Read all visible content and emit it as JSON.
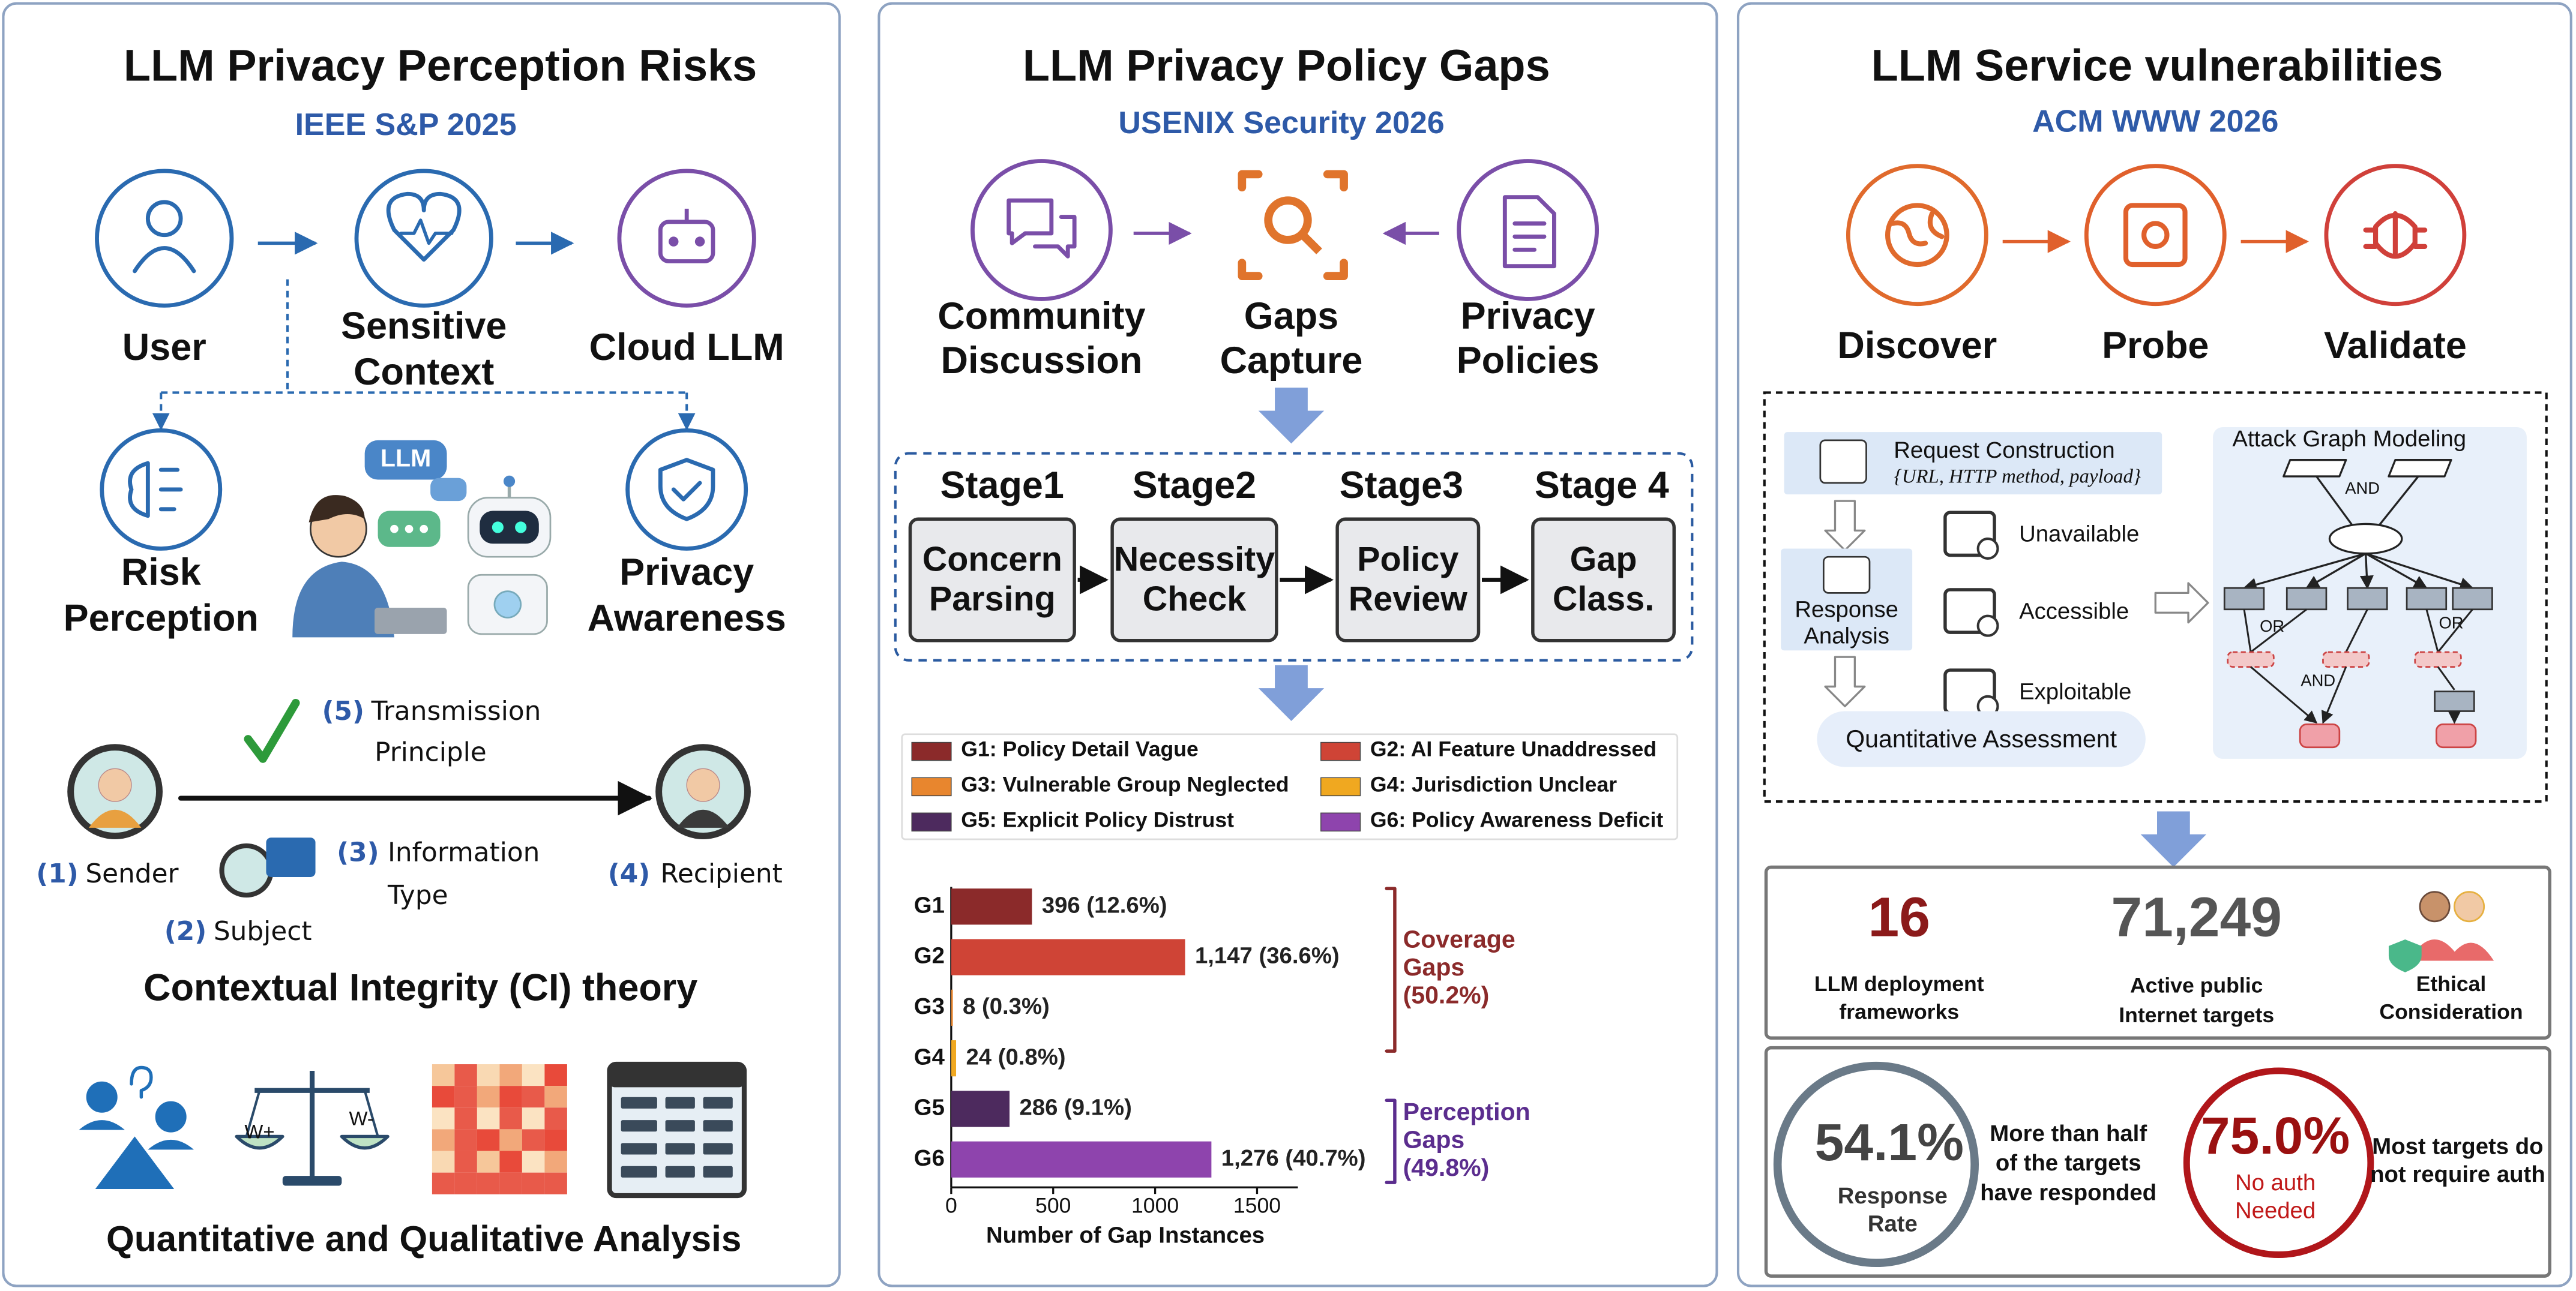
{
  "panels": [
    {
      "title": "LLM Privacy Perception Risks",
      "venue": "IEEE S&P 2025",
      "flow": [
        [
          "User"
        ],
        [
          "Sensitive",
          "Context"
        ],
        [
          "Cloud LLM"
        ]
      ],
      "branches": [
        [
          "Risk",
          "Perception"
        ],
        [
          "Privacy",
          "Awareness"
        ]
      ],
      "bubble": "LLM",
      "ci": {
        "principle": {
          "number": "(5)",
          "lines": [
            "Transmission",
            "Principle"
          ]
        },
        "sender": {
          "number": "(1)",
          "text": "Sender"
        },
        "subject": {
          "number": "(2)",
          "text": "Subject"
        },
        "information": {
          "number": "(3)",
          "lines": [
            "Information",
            "Type"
          ]
        },
        "recipient": {
          "number": "(4)",
          "text": "Recipient"
        }
      },
      "ci_title": "Contextual Integrity (CI) theory",
      "weights": [
        "W+",
        "W-"
      ],
      "analysis_title": "Quantitative and Qualitative Analysis"
    },
    {
      "title": "LLM Privacy Policy Gaps",
      "venue": "USENIX Security 2026",
      "sources": [
        [
          "Community",
          "Discussion"
        ],
        [
          "Gaps",
          "Capture"
        ],
        [
          "Privacy",
          "Policies"
        ]
      ],
      "stages": [
        {
          "name": "Stage1",
          "lines": [
            "Concern",
            "Parsing"
          ]
        },
        {
          "name": "Stage2",
          "lines": [
            "Necessity",
            "Check"
          ]
        },
        {
          "name": "Stage3",
          "lines": [
            "Policy",
            "Review"
          ]
        },
        {
          "name": "Stage 4",
          "lines": [
            "Gap",
            "Class."
          ]
        }
      ],
      "chart": {
        "type": "bar",
        "orientation": "horizontal",
        "categories": [
          "G1",
          "G2",
          "G3",
          "G4",
          "G5",
          "G6"
        ],
        "legend": [
          "G1: Policy Detail Vague",
          "G2: AI Feature Unaddressed",
          "G3: Vulnerable Group Neglected",
          "G4: Jurisdiction Unclear",
          "G5: Explicit Policy Distrust",
          "G6: Policy Awareness Deficit"
        ],
        "colors": [
          "#8b2a2a",
          "#cf4436",
          "#e8862e",
          "#f0a820",
          "#4d2a5e",
          "#8e44ad"
        ],
        "values": [
          396,
          1147,
          8,
          24,
          286,
          1276
        ],
        "value_labels": [
          "396 (12.6%)",
          "1,147 (36.6%)",
          "8 (0.3%)",
          "24 (0.8%)",
          "286 (9.1%)",
          "1,276 (40.7%)"
        ],
        "xlim": [
          0,
          1700
        ],
        "xticks": [
          0,
          500,
          1000,
          1500
        ],
        "xlabel": "Number of Gap Instances",
        "groups": [
          {
            "lines": [
              "Coverage",
              "Gaps",
              "(50.2%)"
            ],
            "color": "#8b2a2a"
          },
          {
            "lines": [
              "Perception",
              "Gaps",
              "(49.8%)"
            ],
            "color": "#5b2d8e"
          }
        ]
      }
    },
    {
      "title": "LLM Service vulnerabilities",
      "venue": "ACM WWW 2026",
      "steps": [
        "Discover",
        "Probe",
        "Validate"
      ],
      "request": {
        "title": "Request Construction",
        "detail": "{URL, HTTP method, payload}"
      },
      "response": [
        "Response",
        "Analysis"
      ],
      "statuses": [
        "Unavailable",
        "Accessible",
        "Exploitable"
      ],
      "assessment": "Quantitative Assessment",
      "graph": {
        "title": "Attack Graph Modeling",
        "gates": [
          "AND",
          "OR",
          "OR",
          "AND"
        ]
      },
      "stats": [
        {
          "value": "16",
          "lines": [
            "LLM deployment",
            "frameworks"
          ]
        },
        {
          "value": "71,249",
          "lines": [
            "Active public",
            "Internet targets"
          ]
        },
        {
          "lines": [
            "Ethical",
            "Consideration"
          ]
        }
      ],
      "rates": [
        {
          "value": "54.1%",
          "lines": [
            "Response",
            "Rate"
          ],
          "note": [
            "More than half",
            "of the targets",
            "have responded"
          ]
        },
        {
          "value": "75.0%",
          "lines": [
            "No auth",
            "Needed"
          ],
          "note": [
            "Most targets do",
            "not require auth"
          ]
        }
      ]
    }
  ]
}
